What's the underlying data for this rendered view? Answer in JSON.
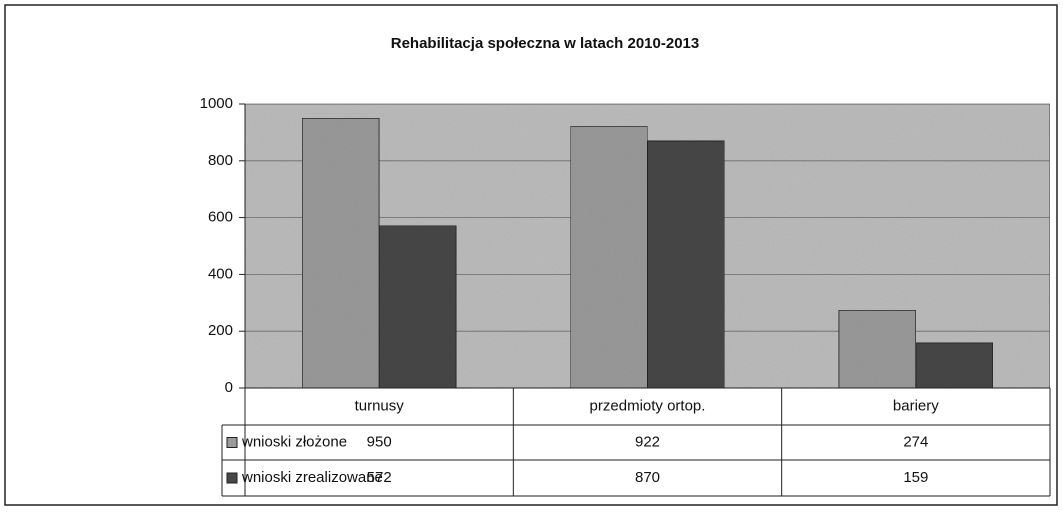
{
  "chart_data": {
    "type": "bar",
    "title": "Rehabilitacja społeczna w latach 2010-2013",
    "categories": [
      "turnusy",
      "przedmioty ortop.",
      "bariery"
    ],
    "series": [
      {
        "name": "wnioski złożone",
        "color": "#9a9a9a",
        "values": [
          950,
          922,
          274
        ]
      },
      {
        "name": "wnioski zrealizowane",
        "color": "#474747",
        "values": [
          572,
          870,
          159
        ]
      }
    ],
    "ylim": [
      0,
      1000
    ],
    "yticks": [
      0,
      200,
      400,
      600,
      800,
      1000
    ],
    "grid": true
  }
}
